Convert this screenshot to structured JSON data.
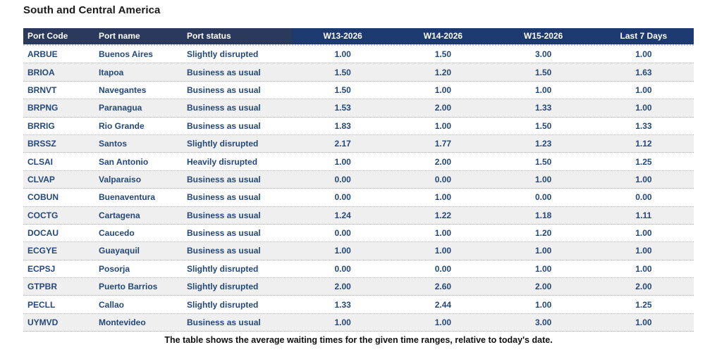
{
  "title": "South and Central America",
  "footer": "The table shows the average waiting times for the given time ranges, relative to today's date.",
  "colors": {
    "header_left_bg": "#2b3a5c",
    "header_right_bg": "#1d3a70",
    "header_text": "#ffffff",
    "row_text": "#24487c",
    "row_bg": "#ffffff",
    "row_alt_bg": "#efefef",
    "row_divider": "#aeaeae",
    "title_text": "#1a1a1a"
  },
  "table": {
    "columns": [
      "Port Code",
      "Port name",
      "Port status",
      "W13-2026",
      "W14-2026",
      "W15-2026",
      "Last 7 Days"
    ],
    "rows": [
      {
        "code": "ARBUE",
        "name": "Buenos Aires",
        "status": "Slightly disrupted",
        "w13": "1.00",
        "w14": "1.50",
        "w15": "3.00",
        "last7": "1.00"
      },
      {
        "code": "BRIOA",
        "name": "Itapoa",
        "status": "Business as usual",
        "w13": "1.50",
        "w14": "1.20",
        "w15": "1.50",
        "last7": "1.63"
      },
      {
        "code": "BRNVT",
        "name": "Navegantes",
        "status": "Business as usual",
        "w13": "1.50",
        "w14": "1.00",
        "w15": "1.00",
        "last7": "1.00"
      },
      {
        "code": "BRPNG",
        "name": "Paranagua",
        "status": "Business as usual",
        "w13": "1.53",
        "w14": "2.00",
        "w15": "1.33",
        "last7": "1.00"
      },
      {
        "code": "BRRIG",
        "name": "Rio Grande",
        "status": "Business as usual",
        "w13": "1.83",
        "w14": "1.00",
        "w15": "1.50",
        "last7": "1.33"
      },
      {
        "code": "BRSSZ",
        "name": "Santos",
        "status": "Slightly disrupted",
        "w13": "2.17",
        "w14": "1.77",
        "w15": "1.23",
        "last7": "1.12"
      },
      {
        "code": "CLSAI",
        "name": "San Antonio",
        "status": "Heavily disrupted",
        "w13": "1.00",
        "w14": "2.00",
        "w15": "1.50",
        "last7": "1.25"
      },
      {
        "code": "CLVAP",
        "name": "Valparaiso",
        "status": "Business as usual",
        "w13": "0.00",
        "w14": "0.00",
        "w15": "1.00",
        "last7": "1.00"
      },
      {
        "code": "COBUN",
        "name": "Buenaventura",
        "status": "Business as usual",
        "w13": "0.00",
        "w14": "1.00",
        "w15": "0.00",
        "last7": "0.00"
      },
      {
        "code": "COCTG",
        "name": "Cartagena",
        "status": "Business as usual",
        "w13": "1.24",
        "w14": "1.22",
        "w15": "1.18",
        "last7": "1.11"
      },
      {
        "code": "DOCAU",
        "name": "Caucedo",
        "status": "Business as usual",
        "w13": "0.00",
        "w14": "1.00",
        "w15": "1.20",
        "last7": "1.00"
      },
      {
        "code": "ECGYE",
        "name": "Guayaquil",
        "status": "Business as usual",
        "w13": "1.00",
        "w14": "1.00",
        "w15": "1.00",
        "last7": "1.00"
      },
      {
        "code": "ECPSJ",
        "name": "Posorja",
        "status": "Slightly disrupted",
        "w13": "0.00",
        "w14": "0.00",
        "w15": "1.00",
        "last7": "1.00"
      },
      {
        "code": "GTPBR",
        "name": "Puerto Barrios",
        "status": "Slightly disrupted",
        "w13": "2.00",
        "w14": "2.60",
        "w15": "2.00",
        "last7": "2.00"
      },
      {
        "code": "PECLL",
        "name": "Callao",
        "status": "Slightly disrupted",
        "w13": "1.33",
        "w14": "2.44",
        "w15": "1.00",
        "last7": "1.25"
      },
      {
        "code": "UYMVD",
        "name": "Montevideo",
        "status": "Business as usual",
        "w13": "1.00",
        "w14": "1.00",
        "w15": "3.00",
        "last7": "1.00"
      }
    ]
  },
  "chart_data": {
    "type": "table",
    "title": "South and Central America",
    "columns": [
      "Port Code",
      "Port name",
      "Port status",
      "W13-2026",
      "W14-2026",
      "W15-2026",
      "Last 7 Days"
    ],
    "rows": [
      [
        "ARBUE",
        "Buenos Aires",
        "Slightly disrupted",
        1.0,
        1.5,
        3.0,
        1.0
      ],
      [
        "BRIOA",
        "Itapoa",
        "Business as usual",
        1.5,
        1.2,
        1.5,
        1.63
      ],
      [
        "BRNVT",
        "Navegantes",
        "Business as usual",
        1.5,
        1.0,
        1.0,
        1.0
      ],
      [
        "BRPNG",
        "Paranagua",
        "Business as usual",
        1.53,
        2.0,
        1.33,
        1.0
      ],
      [
        "BRRIG",
        "Rio Grande",
        "Business as usual",
        1.83,
        1.0,
        1.5,
        1.33
      ],
      [
        "BRSSZ",
        "Santos",
        "Slightly disrupted",
        2.17,
        1.77,
        1.23,
        1.12
      ],
      [
        "CLSAI",
        "San Antonio",
        "Heavily disrupted",
        1.0,
        2.0,
        1.5,
        1.25
      ],
      [
        "CLVAP",
        "Valparaiso",
        "Business as usual",
        0.0,
        0.0,
        1.0,
        1.0
      ],
      [
        "COBUN",
        "Buenaventura",
        "Business as usual",
        0.0,
        1.0,
        0.0,
        0.0
      ],
      [
        "COCTG",
        "Cartagena",
        "Business as usual",
        1.24,
        1.22,
        1.18,
        1.11
      ],
      [
        "DOCAU",
        "Caucedo",
        "Business as usual",
        0.0,
        1.0,
        1.2,
        1.0
      ],
      [
        "ECGYE",
        "Guayaquil",
        "Business as usual",
        1.0,
        1.0,
        1.0,
        1.0
      ],
      [
        "ECPSJ",
        "Posorja",
        "Slightly disrupted",
        0.0,
        0.0,
        1.0,
        1.0
      ],
      [
        "GTPBR",
        "Puerto Barrios",
        "Slightly disrupted",
        2.0,
        2.6,
        2.0,
        2.0
      ],
      [
        "PECLL",
        "Callao",
        "Slightly disrupted",
        1.33,
        2.44,
        1.0,
        1.25
      ],
      [
        "UYMVD",
        "Montevideo",
        "Business as usual",
        1.0,
        1.0,
        3.0,
        1.0
      ]
    ],
    "note": "The table shows the average waiting times for the given time ranges, relative to today's date."
  }
}
